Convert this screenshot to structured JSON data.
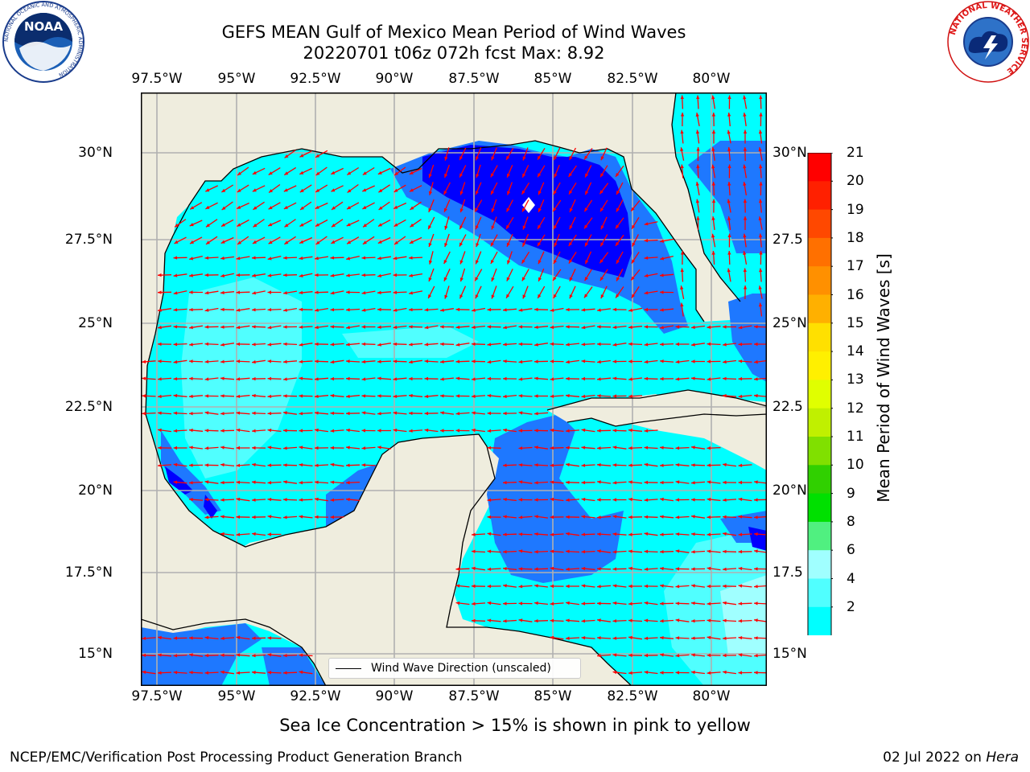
{
  "title_line1": "GEFS MEAN Gulf of Mexico Mean Period of Wind Waves",
  "title_line2": "20220701 t06z 072h fcst   Max: 8.92",
  "lon_ticks": [
    "97.5°W",
    "95°W",
    "92.5°W",
    "90°W",
    "87.5°W",
    "85°W",
    "82.5°W",
    "80°W"
  ],
  "lat_ticks_left": [
    "30°N",
    "27.5°N",
    "25°N",
    "22.5°N",
    "20°N",
    "17.5°N",
    "15°N"
  ],
  "lat_ticks_right": [
    "30°N",
    "27.5",
    "25°N",
    "22.5",
    "20°N",
    "17.5",
    "15°N"
  ],
  "legend_label": "Wind Wave Direction (unscaled)",
  "colorbar": {
    "title": "Mean Period of Wind Waves [s]",
    "labels": [
      "21",
      "20",
      "19",
      "18",
      "17",
      "16",
      "15",
      "14",
      "13",
      "12",
      "11",
      "10",
      "9",
      "8",
      "6",
      "4",
      "2"
    ],
    "colors": [
      "#ff0000",
      "#ff2000",
      "#ff4800",
      "#ff7000",
      "#ff9000",
      "#ffb000",
      "#ffe000",
      "#fff000",
      "#e0ff00",
      "#c0f000",
      "#80e000",
      "#30d000",
      "#00e000",
      "#50f080",
      "#a0ffff",
      "#50ffff",
      "#00ffff",
      "#1e78ff"
    ],
    "extend_color": "#0000ff"
  },
  "footnote": "Sea Ice Concentration > 15% is shown in pink to yellow",
  "footer_left": "NCEP/EMC/Verification Post Processing Product Generation Branch",
  "footer_date": "02 Jul 2022 on ",
  "footer_machine": "Hera",
  "logos": {
    "noaa_text": "NOAA",
    "noaa_ring": "NATIONAL OCEANIC AND ATMOSPHERIC ADMINISTRATION",
    "nws_ring": "NATIONAL WEATHER SERVICE"
  },
  "colors": {
    "land": "#efedde",
    "ocean_4_6": "#00ffff",
    "ocean_6_8": "#50ffff",
    "ocean_8_9": "#a0ffff",
    "ocean_2_4": "#1e78ff",
    "ocean_lt2": "#0000ff",
    "arrow": "#ff0000"
  }
}
